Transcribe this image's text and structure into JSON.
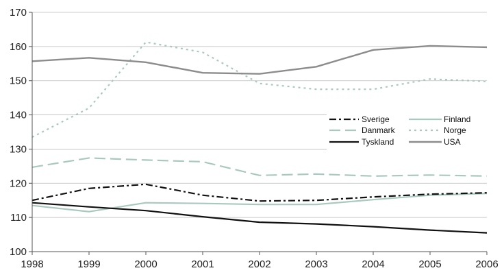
{
  "chart_data": {
    "type": "line",
    "title": "",
    "xlabel": "",
    "ylabel": "",
    "x": [
      "1998",
      "1999",
      "2000",
      "2001",
      "2002",
      "2003",
      "2004",
      "2005",
      "2006"
    ],
    "xlim": [
      1998,
      2006
    ],
    "ylim": [
      100,
      170
    ],
    "yticks": [
      100,
      110,
      120,
      130,
      140,
      150,
      160,
      170
    ],
    "grid": "horizontal",
    "legend_position": "right",
    "series": [
      {
        "name": "Sverige",
        "color": "#111111",
        "dash": "dashdot",
        "width": 2.2,
        "values": [
          115,
          118.5,
          119.7,
          116.5,
          114.8,
          115,
          116,
          116.8,
          117.2
        ]
      },
      {
        "name": "Finland",
        "color": "#a9c9c0",
        "dash": "solid",
        "width": 2.2,
        "values": [
          113.5,
          111.7,
          114.3,
          114.1,
          113.8,
          113.8,
          115.2,
          116.5,
          117
        ]
      },
      {
        "name": "Danmark",
        "color": "#a9c9c0",
        "dash": "dashed",
        "width": 2.2,
        "values": [
          124.7,
          127.4,
          126.8,
          126.3,
          122.3,
          122.7,
          122.1,
          122.4,
          122.1
        ]
      },
      {
        "name": "Norge",
        "color": "#a9c9c0",
        "dash": "dotted",
        "width": 2.2,
        "values": [
          133.5,
          142,
          161.3,
          158.3,
          149.2,
          147.5,
          147.5,
          150.5,
          149.8
        ]
      },
      {
        "name": "Tyskland",
        "color": "#111111",
        "dash": "solid",
        "width": 2.2,
        "values": [
          114.3,
          113.1,
          112,
          110.2,
          108.6,
          108.1,
          107.3,
          106.3,
          105.5
        ]
      },
      {
        "name": "USA",
        "color": "#8c8c8c",
        "dash": "solid",
        "width": 2.4,
        "values": [
          155.7,
          156.7,
          155.4,
          152.3,
          152,
          154.1,
          159,
          160.2,
          159.8
        ]
      }
    ],
    "legend_order": [
      "Sverige",
      "Finland",
      "Danmark",
      "Norge",
      "Tyskland",
      "USA"
    ]
  }
}
